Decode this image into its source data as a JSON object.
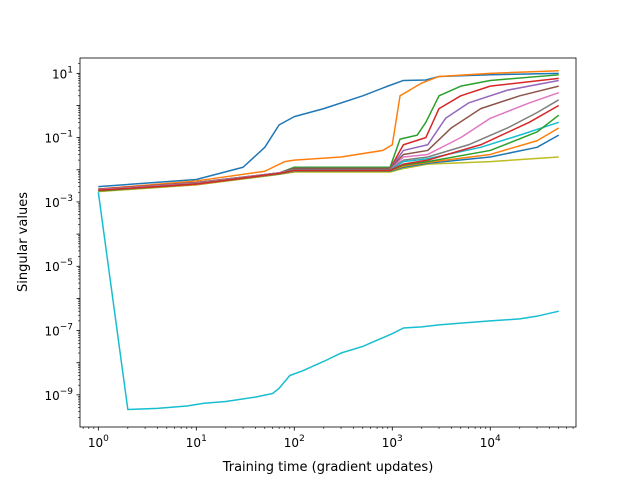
{
  "chart_data": {
    "type": "line",
    "title": "",
    "xlabel": "Training time (gradient updates)",
    "ylabel": "Singular values",
    "x_scale": "log",
    "y_scale": "log",
    "xlim": [
      0.65,
      75000
    ],
    "ylim": [
      1e-10,
      30
    ],
    "x_ticks": [
      {
        "value": 1,
        "label": "10",
        "exp": "0"
      },
      {
        "value": 10,
        "label": "10",
        "exp": "1"
      },
      {
        "value": 100,
        "label": "10",
        "exp": "2"
      },
      {
        "value": 1000,
        "label": "10",
        "exp": "3"
      },
      {
        "value": 10000,
        "label": "10",
        "exp": "4"
      }
    ],
    "y_ticks": [
      {
        "value": 1e-09,
        "label": "10",
        "exp": "−9"
      },
      {
        "value": 1e-07,
        "label": "10",
        "exp": "−7"
      },
      {
        "value": 1e-05,
        "label": "10",
        "exp": "−5"
      },
      {
        "value": 0.001,
        "label": "10",
        "exp": "−3"
      },
      {
        "value": 0.1,
        "label": "10",
        "exp": "−1"
      },
      {
        "value": 10,
        "label": "10",
        "exp": "1"
      }
    ],
    "grid": false,
    "legend": "none",
    "series": [
      {
        "color": "#1f77b4",
        "points": [
          [
            1,
            0.003
          ],
          [
            10,
            0.005
          ],
          [
            30,
            0.012
          ],
          [
            50,
            0.05
          ],
          [
            70,
            0.25
          ],
          [
            100,
            0.45
          ],
          [
            200,
            0.8
          ],
          [
            500,
            2.0
          ],
          [
            900,
            4.0
          ],
          [
            1300,
            6.0
          ],
          [
            2200,
            6.2
          ],
          [
            3000,
            8.0
          ],
          [
            10000,
            9.0
          ],
          [
            50000,
            10.0
          ]
        ]
      },
      {
        "color": "#ff7f0e",
        "points": [
          [
            1,
            0.0025
          ],
          [
            10,
            0.0045
          ],
          [
            50,
            0.009
          ],
          [
            80,
            0.018
          ],
          [
            100,
            0.02
          ],
          [
            300,
            0.025
          ],
          [
            800,
            0.04
          ],
          [
            1000,
            0.06
          ],
          [
            1200,
            2.0
          ],
          [
            2000,
            5.0
          ],
          [
            3000,
            8.0
          ],
          [
            10000,
            10.0
          ],
          [
            50000,
            12.0
          ]
        ]
      },
      {
        "color": "#2ca02c",
        "points": [
          [
            1,
            0.0025
          ],
          [
            10,
            0.004
          ],
          [
            70,
            0.008
          ],
          [
            100,
            0.012
          ],
          [
            950,
            0.012
          ],
          [
            1200,
            0.09
          ],
          [
            1800,
            0.12
          ],
          [
            2200,
            0.3
          ],
          [
            3000,
            2.0
          ],
          [
            5000,
            4.0
          ],
          [
            10000,
            6.0
          ],
          [
            50000,
            9.0
          ]
        ]
      },
      {
        "color": "#d62728",
        "points": [
          [
            1,
            0.0025
          ],
          [
            10,
            0.004
          ],
          [
            70,
            0.008
          ],
          [
            100,
            0.011
          ],
          [
            950,
            0.011
          ],
          [
            1300,
            0.06
          ],
          [
            2200,
            0.1
          ],
          [
            3000,
            0.8
          ],
          [
            5000,
            2.0
          ],
          [
            10000,
            4.0
          ],
          [
            50000,
            7.0
          ]
        ]
      },
      {
        "color": "#9467bd",
        "points": [
          [
            1,
            0.0024
          ],
          [
            10,
            0.004
          ],
          [
            70,
            0.008
          ],
          [
            100,
            0.011
          ],
          [
            950,
            0.011
          ],
          [
            1300,
            0.04
          ],
          [
            2300,
            0.06
          ],
          [
            3500,
            0.4
          ],
          [
            6000,
            1.2
          ],
          [
            15000,
            3.0
          ],
          [
            50000,
            6.0
          ]
        ]
      },
      {
        "color": "#8c564b",
        "points": [
          [
            1,
            0.0024
          ],
          [
            10,
            0.004
          ],
          [
            70,
            0.008
          ],
          [
            100,
            0.011
          ],
          [
            950,
            0.011
          ],
          [
            1300,
            0.03
          ],
          [
            2300,
            0.04
          ],
          [
            4000,
            0.2
          ],
          [
            8000,
            0.8
          ],
          [
            20000,
            2.0
          ],
          [
            50000,
            4.0
          ]
        ]
      },
      {
        "color": "#e377c2",
        "points": [
          [
            1,
            0.0024
          ],
          [
            10,
            0.0038
          ],
          [
            70,
            0.008
          ],
          [
            100,
            0.01
          ],
          [
            950,
            0.01
          ],
          [
            1300,
            0.025
          ],
          [
            2300,
            0.03
          ],
          [
            5000,
            0.1
          ],
          [
            10000,
            0.4
          ],
          [
            25000,
            1.2
          ],
          [
            50000,
            2.5
          ]
        ]
      },
      {
        "color": "#7f7f7f",
        "points": [
          [
            1,
            0.0023
          ],
          [
            10,
            0.0037
          ],
          [
            70,
            0.0078
          ],
          [
            100,
            0.01
          ],
          [
            950,
            0.01
          ],
          [
            1300,
            0.02
          ],
          [
            2300,
            0.025
          ],
          [
            6000,
            0.06
          ],
          [
            15000,
            0.2
          ],
          [
            30000,
            0.6
          ],
          [
            50000,
            1.5
          ]
        ]
      },
      {
        "color": "#17becf",
        "points": [
          [
            1,
            0.0023
          ],
          [
            10,
            0.0036
          ],
          [
            70,
            0.0076
          ],
          [
            100,
            0.0098
          ],
          [
            950,
            0.0098
          ],
          [
            1300,
            0.018
          ],
          [
            2300,
            0.022
          ],
          [
            8000,
            0.05
          ],
          [
            20000,
            0.12
          ],
          [
            50000,
            0.3
          ]
        ]
      },
      {
        "color": "#bcbd22",
        "points": [
          [
            1,
            0.0021
          ],
          [
            10,
            0.0034
          ],
          [
            70,
            0.0072
          ],
          [
            100,
            0.0085
          ],
          [
            950,
            0.0085
          ],
          [
            1300,
            0.011
          ],
          [
            2300,
            0.015
          ],
          [
            10000,
            0.018
          ],
          [
            50000,
            0.025
          ]
        ]
      },
      {
        "color": "#1f77b4",
        "points": [
          [
            1,
            0.0022
          ],
          [
            10,
            0.0035
          ],
          [
            70,
            0.0074
          ],
          [
            100,
            0.009
          ],
          [
            950,
            0.009
          ],
          [
            1300,
            0.012
          ],
          [
            2300,
            0.016
          ],
          [
            10000,
            0.025
          ],
          [
            30000,
            0.05
          ],
          [
            50000,
            0.12
          ]
        ]
      },
      {
        "color": "#ff7f0e",
        "points": [
          [
            1,
            0.0022
          ],
          [
            10,
            0.0035
          ],
          [
            70,
            0.0075
          ],
          [
            100,
            0.0092
          ],
          [
            950,
            0.0092
          ],
          [
            1300,
            0.013
          ],
          [
            2300,
            0.017
          ],
          [
            10000,
            0.03
          ],
          [
            30000,
            0.08
          ],
          [
            50000,
            0.2
          ]
        ]
      },
      {
        "color": "#2ca02c",
        "points": [
          [
            1,
            0.0022
          ],
          [
            10,
            0.0036
          ],
          [
            70,
            0.0076
          ],
          [
            100,
            0.0094
          ],
          [
            950,
            0.0094
          ],
          [
            1300,
            0.014
          ],
          [
            2300,
            0.018
          ],
          [
            10000,
            0.04
          ],
          [
            30000,
            0.15
          ],
          [
            50000,
            0.5
          ]
        ]
      },
      {
        "color": "#d62728",
        "points": [
          [
            1,
            0.0023
          ],
          [
            10,
            0.0036
          ],
          [
            70,
            0.0077
          ],
          [
            100,
            0.0096
          ],
          [
            950,
            0.0096
          ],
          [
            1300,
            0.015
          ],
          [
            2300,
            0.02
          ],
          [
            8000,
            0.06
          ],
          [
            25000,
            0.3
          ],
          [
            50000,
            1.0
          ]
        ]
      },
      {
        "color": "#17becf",
        "points": [
          [
            1,
            0.002
          ],
          [
            2,
            3.5e-10
          ],
          [
            4,
            3.8e-10
          ],
          [
            8,
            4.5e-10
          ],
          [
            12,
            5.5e-10
          ],
          [
            20,
            6.2e-10
          ],
          [
            40,
            8.5e-10
          ],
          [
            60,
            1.1e-09
          ],
          [
            70,
            1.6e-09
          ],
          [
            90,
            4e-09
          ],
          [
            120,
            5.5e-09
          ],
          [
            200,
            1.1e-08
          ],
          [
            300,
            2e-08
          ],
          [
            500,
            3.2e-08
          ],
          [
            700,
            5e-08
          ],
          [
            1000,
            8e-08
          ],
          [
            1300,
            1.2e-07
          ],
          [
            2000,
            1.3e-07
          ],
          [
            3000,
            1.5e-07
          ],
          [
            5000,
            1.7e-07
          ],
          [
            10000,
            2e-07
          ],
          [
            20000,
            2.3e-07
          ],
          [
            30000,
            2.8e-07
          ],
          [
            50000,
            4e-07
          ]
        ]
      }
    ]
  }
}
